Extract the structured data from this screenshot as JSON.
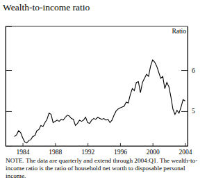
{
  "chart_data": {
    "type": "line",
    "title": "Wealth-to-income ratio",
    "ylabel": "Ratio",
    "note": "NOTE. The data are quarterly and extend through 2004:Q1. The wealth-to-income ratio is the ratio of household net worth to disposable personal income.",
    "color": "#000000",
    "x": [
      1983,
      1983.25,
      1983.5,
      1983.75,
      1984,
      1984.25,
      1984.5,
      1984.75,
      1985,
      1985.25,
      1985.5,
      1985.75,
      1986,
      1986.25,
      1986.5,
      1986.75,
      1987,
      1987.25,
      1987.5,
      1987.75,
      1988,
      1988.25,
      1988.5,
      1988.75,
      1989,
      1989.25,
      1989.5,
      1989.75,
      1990,
      1990.25,
      1990.5,
      1990.75,
      1991,
      1991.25,
      1991.5,
      1991.75,
      1992,
      1992.25,
      1992.5,
      1992.75,
      1993,
      1993.25,
      1993.5,
      1993.75,
      1994,
      1994.25,
      1994.5,
      1994.75,
      1995,
      1995.25,
      1995.5,
      1995.75,
      1996,
      1996.25,
      1996.5,
      1996.75,
      1997,
      1997.25,
      1997.5,
      1997.75,
      1998,
      1998.25,
      1998.5,
      1998.75,
      1999,
      1999.25,
      1999.5,
      1999.75,
      2000,
      2000.25,
      2000.5,
      2000.75,
      2001,
      2001.25,
      2001.5,
      2001.75,
      2002,
      2002.25,
      2002.5,
      2002.75,
      2003,
      2003.25,
      2003.5,
      2003.75,
      2004
    ],
    "values": [
      4.38,
      4.42,
      4.52,
      4.48,
      4.35,
      4.25,
      4.22,
      4.28,
      4.3,
      4.38,
      4.4,
      4.52,
      4.55,
      4.65,
      4.62,
      4.72,
      4.8,
      4.95,
      4.92,
      4.72,
      4.75,
      4.78,
      4.75,
      4.8,
      4.78,
      4.85,
      4.9,
      4.88,
      4.82,
      4.8,
      4.65,
      4.7,
      4.78,
      4.75,
      4.78,
      4.85,
      4.72,
      4.7,
      4.78,
      4.82,
      4.8,
      4.85,
      4.82,
      4.8,
      4.82,
      4.78,
      4.8,
      4.72,
      4.78,
      4.9,
      5.0,
      5.05,
      5.08,
      5.1,
      5.12,
      5.22,
      5.2,
      5.4,
      5.55,
      5.5,
      5.7,
      5.72,
      5.45,
      5.7,
      5.8,
      5.9,
      5.85,
      6.1,
      6.25,
      6.2,
      6.1,
      5.95,
      5.8,
      5.85,
      5.55,
      5.7,
      5.6,
      5.35,
      5.05,
      4.92,
      5.02,
      4.95,
      5.1,
      5.28,
      5.25
    ],
    "xlim": [
      1981.9,
      2004.3
    ],
    "xticks": [
      1984,
      1988,
      1992,
      1996,
      2000,
      2004
    ],
    "ylim": [
      4.15,
      7.07
    ],
    "yticks": [
      5,
      6
    ],
    "grid": false
  }
}
